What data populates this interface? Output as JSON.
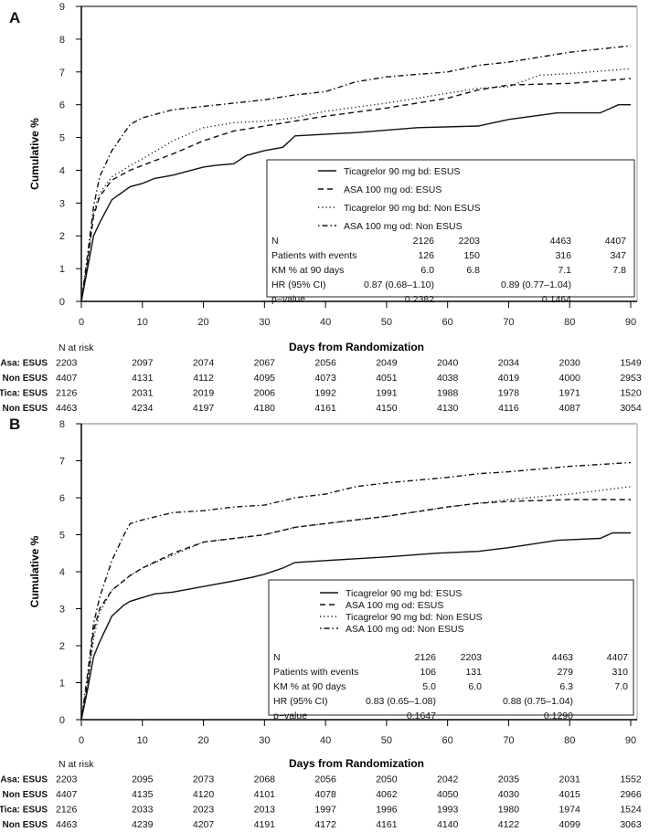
{
  "chart_data": [
    {
      "type": "line",
      "panel_label": "A",
      "xlabel": "Days from Randomization",
      "ylabel": "Cumulative %",
      "xlim": [
        0,
        90
      ],
      "ylim": [
        0,
        9
      ],
      "xticks": [
        "0",
        "10",
        "20",
        "30",
        "40",
        "50",
        "60",
        "70",
        "80",
        "90"
      ],
      "yticks": [
        "0",
        "1",
        "2",
        "3",
        "4",
        "5",
        "6",
        "7",
        "8",
        "9"
      ],
      "grid": false,
      "legend_position": "bottom-right",
      "series": [
        {
          "name": "Ticagrelor 90 mg bd: ESUS",
          "style": "solid",
          "x": [
            0,
            1,
            2,
            3,
            5,
            8,
            10,
            12,
            15,
            18,
            20,
            22,
            25,
            27,
            30,
            33,
            35,
            45,
            55,
            65,
            70,
            78,
            85,
            88,
            90
          ],
          "y": [
            0,
            1.0,
            2.0,
            2.4,
            3.1,
            3.5,
            3.6,
            3.75,
            3.85,
            4.0,
            4.1,
            4.15,
            4.2,
            4.45,
            4.6,
            4.7,
            5.05,
            5.15,
            5.3,
            5.35,
            5.55,
            5.75,
            5.75,
            6.0,
            6.0
          ]
        },
        {
          "name": "ASA 100 mg od: ESUS",
          "style": "dashed",
          "x": [
            0,
            1,
            2,
            3,
            5,
            8,
            10,
            15,
            20,
            25,
            30,
            35,
            40,
            50,
            60,
            65,
            70,
            80,
            90
          ],
          "y": [
            0,
            1.2,
            2.6,
            3.2,
            3.7,
            4.0,
            4.15,
            4.5,
            4.9,
            5.2,
            5.35,
            5.5,
            5.65,
            5.9,
            6.2,
            6.45,
            6.6,
            6.65,
            6.8
          ]
        },
        {
          "name": "Ticagrelor 90 mg bd: Non ESUS",
          "style": "dotted",
          "x": [
            0,
            1,
            2,
            3,
            5,
            8,
            10,
            15,
            20,
            25,
            30,
            35,
            40,
            50,
            60,
            65,
            70,
            75,
            80,
            90
          ],
          "y": [
            0,
            1.2,
            2.7,
            3.3,
            3.8,
            4.15,
            4.35,
            4.9,
            5.3,
            5.45,
            5.5,
            5.6,
            5.8,
            6.05,
            6.35,
            6.5,
            6.55,
            6.9,
            6.95,
            7.1
          ]
        },
        {
          "name": "ASA 100 mg od: Non ESUS",
          "style": "dotdash",
          "x": [
            0,
            1,
            2,
            3,
            5,
            8,
            10,
            15,
            20,
            25,
            30,
            35,
            40,
            45,
            50,
            60,
            65,
            70,
            80,
            90
          ],
          "y": [
            0,
            1.4,
            2.9,
            3.8,
            4.6,
            5.4,
            5.6,
            5.85,
            5.95,
            6.05,
            6.15,
            6.3,
            6.4,
            6.7,
            6.85,
            7.0,
            7.2,
            7.3,
            7.6,
            7.8
          ]
        }
      ],
      "stats_table": {
        "rows": [
          {
            "label": "N",
            "values": [
              "2126",
              "2203",
              "4463",
              "4407"
            ]
          },
          {
            "label": "Patients with events",
            "values": [
              "126",
              "150",
              "316",
              "347"
            ]
          },
          {
            "label": "KM % at 90 days",
            "values": [
              "6.0",
              "6.8",
              "7.1",
              "7.8"
            ]
          }
        ],
        "hr_label": "HR (95% CI)",
        "hr_esus": "0.87 (0.68–1.10)",
        "hr_non_esus": "0.89 (0.77–1.04)",
        "p_label": "p−value",
        "p_esus": "0.2382",
        "p_non_esus": "0.1464"
      },
      "risk_table": {
        "title": "N at risk",
        "rows": [
          {
            "label": "Asa: ESUS",
            "values": [
              "2203",
              "2097",
              "2074",
              "2067",
              "2056",
              "2049",
              "2040",
              "2034",
              "2030",
              "1549"
            ]
          },
          {
            "label": "Asa: Non ESUS",
            "values": [
              "4407",
              "4131",
              "4112",
              "4095",
              "4073",
              "4051",
              "4038",
              "4019",
              "4000",
              "2953"
            ]
          },
          {
            "label": "Tica: ESUS",
            "values": [
              "2126",
              "2031",
              "2019",
              "2006",
              "1992",
              "1991",
              "1988",
              "1978",
              "1971",
              "1520"
            ]
          },
          {
            "label": "Tica: Non ESUS",
            "values": [
              "4463",
              "4234",
              "4197",
              "4180",
              "4161",
              "4150",
              "4130",
              "4116",
              "4087",
              "3054"
            ]
          }
        ]
      }
    },
    {
      "type": "line",
      "panel_label": "B",
      "xlabel": "Days from Randomization",
      "ylabel": "Cumulative %",
      "xlim": [
        0,
        90
      ],
      "ylim": [
        0,
        8
      ],
      "xticks": [
        "0",
        "10",
        "20",
        "30",
        "40",
        "50",
        "60",
        "70",
        "80",
        "90"
      ],
      "yticks": [
        "0",
        "1",
        "2",
        "3",
        "4",
        "5",
        "6",
        "7",
        "8"
      ],
      "grid": false,
      "legend_position": "bottom-right",
      "series": [
        {
          "name": "Ticagrelor 90 mg bd: ESUS",
          "style": "solid",
          "x": [
            0,
            1,
            2,
            3,
            5,
            7,
            8,
            10,
            12,
            15,
            20,
            25,
            28,
            30,
            33,
            35,
            40,
            50,
            58,
            65,
            70,
            78,
            85,
            87,
            90
          ],
          "y": [
            0,
            0.8,
            1.7,
            2.1,
            2.8,
            3.1,
            3.2,
            3.3,
            3.4,
            3.45,
            3.6,
            3.75,
            3.85,
            3.93,
            4.1,
            4.25,
            4.3,
            4.4,
            4.5,
            4.55,
            4.65,
            4.85,
            4.9,
            5.05,
            5.05
          ]
        },
        {
          "name": "ASA 100 mg od: ESUS",
          "style": "dashed",
          "x": [
            0,
            1,
            2,
            3,
            5,
            8,
            10,
            15,
            20,
            25,
            30,
            35,
            40,
            50,
            60,
            65,
            70,
            80,
            90
          ],
          "y": [
            0,
            1.0,
            2.4,
            3.0,
            3.5,
            3.9,
            4.1,
            4.5,
            4.8,
            4.9,
            5.0,
            5.2,
            5.3,
            5.5,
            5.75,
            5.85,
            5.9,
            5.95,
            5.95
          ]
        },
        {
          "name": "Ticagrelor 90 mg bd: Non ESUS",
          "style": "dotted",
          "x": [
            0,
            1,
            2,
            3,
            5,
            8,
            10,
            15,
            20,
            25,
            30,
            35,
            40,
            50,
            60,
            65,
            70,
            80,
            90
          ],
          "y": [
            0,
            0.9,
            2.2,
            2.9,
            3.5,
            3.9,
            4.1,
            4.45,
            4.8,
            4.9,
            5.0,
            5.2,
            5.3,
            5.5,
            5.75,
            5.85,
            5.95,
            6.1,
            6.3
          ]
        },
        {
          "name": "ASA 100 mg od: Non ESUS",
          "style": "dotdash",
          "x": [
            0,
            1,
            2,
            3,
            5,
            7,
            8,
            10,
            15,
            20,
            25,
            30,
            35,
            40,
            45,
            50,
            60,
            65,
            70,
            80,
            90
          ],
          "y": [
            0,
            1.2,
            2.6,
            3.3,
            4.3,
            5.0,
            5.3,
            5.4,
            5.6,
            5.65,
            5.75,
            5.8,
            6.0,
            6.1,
            6.3,
            6.4,
            6.55,
            6.65,
            6.7,
            6.85,
            6.95
          ]
        }
      ],
      "stats_table": {
        "rows": [
          {
            "label": "N",
            "values": [
              "2126",
              "2203",
              "4463",
              "4407"
            ]
          },
          {
            "label": "Patients with events",
            "values": [
              "106",
              "131",
              "279",
              "310"
            ]
          },
          {
            "label": "KM % at 90 days",
            "values": [
              "5.0",
              "6.0",
              "6.3",
              "7.0"
            ]
          }
        ],
        "hr_label": "HR (95% CI)",
        "hr_esus": "0.83 (0.65–1.08)",
        "hr_non_esus": "0.88 (0.75–1.04)",
        "p_label": "p−value",
        "p_esus": "0.1647",
        "p_non_esus": "0.1290"
      },
      "risk_table": {
        "title": "N at risk",
        "rows": [
          {
            "label": "Asa: ESUS",
            "values": [
              "2203",
              "2095",
              "2073",
              "2068",
              "2056",
              "2050",
              "2042",
              "2035",
              "2031",
              "1552"
            ]
          },
          {
            "label": "Asa: Non ESUS",
            "values": [
              "4407",
              "4135",
              "4120",
              "4101",
              "4078",
              "4062",
              "4050",
              "4030",
              "4015",
              "2966"
            ]
          },
          {
            "label": "Tica: ESUS",
            "values": [
              "2126",
              "2033",
              "2023",
              "2013",
              "1997",
              "1996",
              "1993",
              "1980",
              "1974",
              "1524"
            ]
          },
          {
            "label": "Tica: Non ESUS",
            "values": [
              "4463",
              "4239",
              "4207",
              "4191",
              "4172",
              "4161",
              "4140",
              "4122",
              "4099",
              "3063"
            ]
          }
        ]
      }
    }
  ],
  "colors": {
    "line": "#111111",
    "frame": "#333333",
    "frame_light": "#bdbdbd"
  }
}
